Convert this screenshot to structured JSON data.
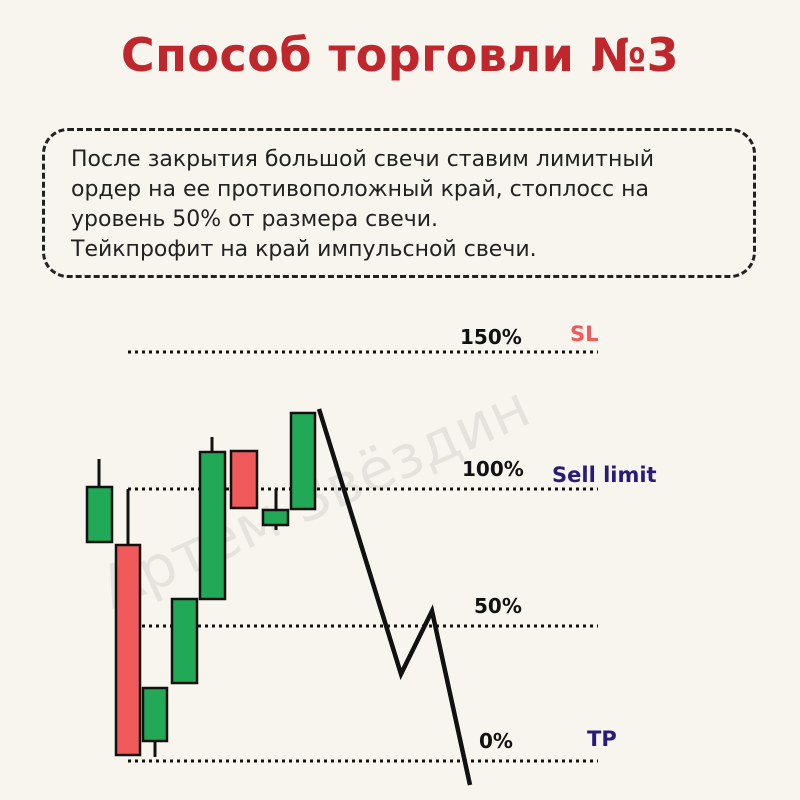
{
  "title": "Способ торговли №3",
  "description": {
    "line1": "После закрытия большой свечи ставим лимитный",
    "line2": "ордер на ее противоположный край, стоплосс на",
    "line3": "уровень 50% от размера свечи.",
    "line4": "Тейкпрофит на край импульсной свечи."
  },
  "watermark": "Артем Звёздин",
  "levels": [
    {
      "id": "level-150",
      "percent": "150%",
      "tag": "SL",
      "tag_color": "#f05a5a"
    },
    {
      "id": "level-100",
      "percent": "100%",
      "tag": "Sell limit",
      "tag_color": "#2a1a7a"
    },
    {
      "id": "level-50",
      "percent": "50%",
      "tag": "",
      "tag_color": ""
    },
    {
      "id": "level-0",
      "percent": "0%",
      "tag": "TP",
      "tag_color": "#2a1a7a"
    }
  ],
  "colors": {
    "bull": "#21a958",
    "bear": "#f05a5a",
    "title": "#c0272d",
    "line": "#111111"
  }
}
